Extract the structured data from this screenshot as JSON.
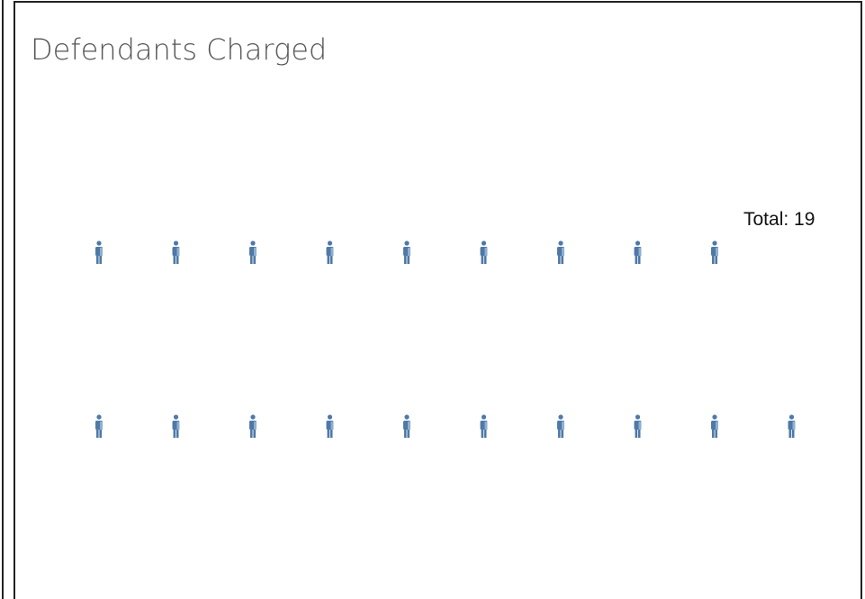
{
  "title": "Defendants Charged",
  "total_prefix": "Total:",
  "total": 19
}
